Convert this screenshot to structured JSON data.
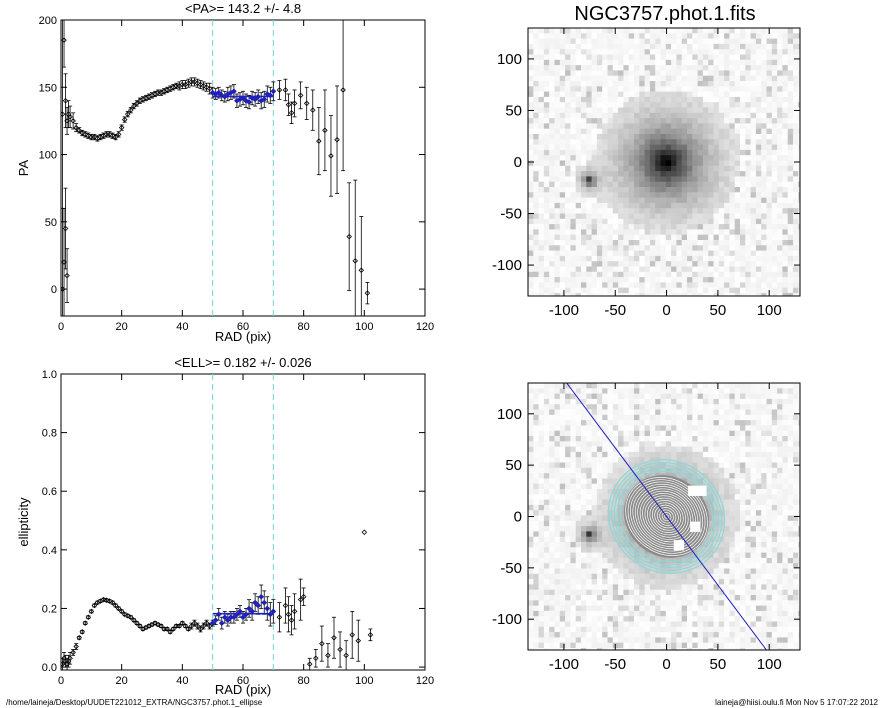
{
  "footer": {
    "path": "/home/laineja/Desktop/UUDET221012_EXTRA/NGC3757.phot.1_ellipse",
    "user_stamp": "laineja@hiisi.oulu.fi  Mon Nov  5 17:07:22 2012"
  },
  "chart_data": [
    {
      "type": "scatter",
      "title": "<PA>= 143.2 +/-   4.8",
      "xlabel": "RAD (pix)",
      "ylabel": "PA",
      "xlim": [
        0,
        120
      ],
      "ylim": [
        -20,
        200
      ],
      "xticks": [
        0,
        20,
        40,
        60,
        80,
        100,
        120
      ],
      "yticks": [
        0,
        50,
        100,
        150,
        200
      ],
      "fit_window": [
        50,
        70
      ],
      "mean_value": 143.2,
      "error": 4.8,
      "series": [
        {
          "marker": "diamond",
          "color": "#000000",
          "x": [
            0.5,
            1,
            1.5,
            2,
            2.5,
            3,
            4,
            5,
            6,
            7,
            8,
            9,
            10,
            11,
            12,
            13,
            14,
            15,
            16,
            17,
            18,
            19,
            20,
            21,
            22,
            23,
            24,
            25,
            26,
            27,
            28,
            29,
            30,
            31,
            32,
            33,
            34,
            35,
            36,
            37,
            38,
            39,
            40,
            41,
            42,
            43,
            44,
            45,
            46,
            47,
            48,
            49,
            50,
            51,
            52,
            53,
            54,
            55,
            56,
            57,
            58,
            59,
            60,
            61,
            62,
            63,
            64,
            65,
            66,
            67,
            68,
            69,
            70,
            72,
            74,
            75,
            76,
            77,
            79,
            81,
            83,
            85,
            87,
            89,
            91,
            93,
            95,
            97,
            99,
            101
          ],
          "y": [
            130,
            185,
            140,
            125,
            130,
            128,
            125,
            120,
            118,
            116,
            115,
            114,
            113,
            113,
            112,
            113,
            114,
            115,
            115,
            114,
            113,
            115,
            120,
            126,
            130,
            133,
            136,
            138,
            140,
            141,
            142,
            143,
            144,
            145,
            146,
            146,
            147,
            148,
            149,
            150,
            151,
            151,
            152,
            152,
            153,
            154,
            154,
            153,
            152,
            151,
            150,
            149,
            146,
            145,
            146,
            144,
            143,
            145,
            146,
            147,
            140,
            141,
            142,
            140,
            139,
            142,
            141,
            143,
            140,
            141,
            145,
            144,
            147,
            148,
            148,
            137,
            131,
            138,
            144,
            138,
            133,
            110,
            118,
            99,
            111,
            148,
            39,
            21,
            14,
            -3
          ],
          "yerr": [
            80,
            20,
            20,
            10,
            10,
            8,
            6,
            3,
            2,
            2,
            2,
            2,
            2,
            2,
            2,
            2,
            2,
            2,
            2,
            2,
            2,
            2,
            2,
            2,
            2,
            2,
            2,
            2,
            2,
            2,
            2,
            2,
            2,
            2,
            2,
            2,
            2,
            2,
            2,
            2,
            2,
            3,
            3,
            3,
            3,
            3,
            3,
            3,
            3,
            3,
            3,
            4,
            4,
            4,
            4,
            4,
            4,
            5,
            5,
            5,
            5,
            5,
            5,
            5,
            5,
            5,
            5,
            5,
            6,
            6,
            6,
            6,
            7,
            7,
            8,
            8,
            8,
            10,
            10,
            12,
            15,
            25,
            30,
            30,
            40,
            60,
            40,
            60,
            40,
            8
          ]
        },
        {
          "marker": "diamond",
          "color": "#000000",
          "x": [
            0.5,
            1,
            1.5,
            2
          ],
          "y": [
            0,
            20,
            45,
            10
          ],
          "yerr": [
            60,
            40,
            30,
            20
          ]
        },
        {
          "marker": "diamond",
          "color": "#2020c0",
          "x": [
            50,
            51,
            52,
            53,
            54,
            55,
            56,
            57,
            58,
            59,
            60,
            61,
            62,
            63,
            64,
            65,
            66,
            67,
            68,
            69,
            70
          ],
          "y": [
            146,
            145,
            146,
            144,
            143,
            145,
            146,
            147,
            140,
            141,
            142,
            140,
            139,
            142,
            141,
            143,
            140,
            141,
            145,
            144,
            147
          ]
        }
      ]
    },
    {
      "type": "scatter",
      "title": "<ELL>= 0.182 +/-  0.026",
      "xlabel": "RAD (pix)",
      "ylabel": "ellipticity",
      "xlim": [
        0,
        120
      ],
      "ylim": [
        -0.01,
        1.0
      ],
      "xticks": [
        0,
        20,
        40,
        60,
        80,
        100,
        120
      ],
      "yticks": [
        0.0,
        0.2,
        0.4,
        0.6,
        0.8,
        1.0
      ],
      "fit_window": [
        50,
        70
      ],
      "mean_value": 0.182,
      "error": 0.026,
      "series": [
        {
          "marker": "diamond",
          "color": "#000000",
          "x": [
            0.5,
            1,
            1.5,
            2,
            2.5,
            3,
            4,
            5,
            6,
            7,
            8,
            9,
            10,
            11,
            12,
            13,
            14,
            15,
            16,
            17,
            18,
            19,
            20,
            21,
            22,
            23,
            24,
            25,
            26,
            27,
            28,
            29,
            30,
            31,
            32,
            33,
            34,
            35,
            36,
            37,
            38,
            39,
            40,
            41,
            42,
            43,
            44,
            45,
            46,
            47,
            48,
            49,
            50,
            51,
            52,
            53,
            54,
            55,
            56,
            57,
            58,
            59,
            60,
            61,
            62,
            63,
            64,
            65,
            66,
            67,
            68,
            69,
            70,
            72,
            74,
            75,
            76,
            77,
            79,
            80,
            82,
            84,
            86,
            88,
            90,
            92,
            94,
            96,
            98,
            100,
            102
          ],
          "y": [
            0.01,
            0.03,
            0.02,
            0.01,
            0.02,
            0.03,
            0.05,
            0.07,
            0.1,
            0.12,
            0.15,
            0.17,
            0.19,
            0.21,
            0.22,
            0.225,
            0.23,
            0.228,
            0.225,
            0.22,
            0.21,
            0.2,
            0.19,
            0.18,
            0.175,
            0.17,
            0.16,
            0.15,
            0.14,
            0.13,
            0.135,
            0.14,
            0.145,
            0.15,
            0.145,
            0.14,
            0.13,
            0.13,
            0.12,
            0.13,
            0.14,
            0.14,
            0.15,
            0.14,
            0.13,
            0.14,
            0.15,
            0.14,
            0.13,
            0.14,
            0.15,
            0.14,
            0.15,
            0.16,
            0.18,
            0.15,
            0.17,
            0.16,
            0.17,
            0.17,
            0.18,
            0.19,
            0.17,
            0.18,
            0.2,
            0.19,
            0.22,
            0.21,
            0.24,
            0.22,
            0.2,
            0.18,
            0.19,
            0.17,
            0.21,
            0.18,
            0.16,
            0.19,
            0.23,
            0.24,
            0.01,
            0.03,
            0.08,
            0.04,
            0.1,
            0.06,
            0.04,
            0.11,
            0.09,
            0.46,
            0.11
          ],
          "yerr": [
            0.02,
            0.02,
            0.02,
            0.02,
            0.02,
            0.02,
            0.01,
            0.01,
            0.005,
            0.005,
            0.005,
            0.005,
            0.005,
            0.005,
            0.005,
            0.005,
            0.005,
            0.005,
            0.005,
            0.005,
            0.005,
            0.005,
            0.005,
            0.005,
            0.005,
            0.005,
            0.005,
            0.005,
            0.005,
            0.005,
            0.005,
            0.005,
            0.005,
            0.005,
            0.005,
            0.005,
            0.005,
            0.005,
            0.005,
            0.005,
            0.005,
            0.005,
            0.005,
            0.005,
            0.005,
            0.01,
            0.01,
            0.01,
            0.01,
            0.01,
            0.01,
            0.01,
            0.01,
            0.015,
            0.02,
            0.02,
            0.02,
            0.02,
            0.02,
            0.02,
            0.02,
            0.02,
            0.02,
            0.02,
            0.03,
            0.03,
            0.03,
            0.03,
            0.04,
            0.04,
            0.04,
            0.04,
            0.04,
            0.05,
            0.06,
            0.06,
            0.05,
            0.06,
            0.07,
            0.03,
            0.02,
            0.03,
            0.06,
            0.04,
            0.07,
            0.06,
            0.05,
            0.08,
            0.07,
            0.0,
            0.02
          ]
        },
        {
          "marker": "diamond",
          "color": "#2020c0",
          "x": [
            50,
            51,
            52,
            53,
            54,
            55,
            56,
            57,
            58,
            59,
            60,
            61,
            62,
            63,
            64,
            65,
            66,
            67,
            68,
            69,
            70
          ],
          "y": [
            0.15,
            0.16,
            0.18,
            0.15,
            0.17,
            0.16,
            0.17,
            0.17,
            0.18,
            0.19,
            0.17,
            0.18,
            0.2,
            0.19,
            0.22,
            0.21,
            0.24,
            0.22,
            0.2,
            0.18,
            0.19
          ]
        }
      ]
    },
    {
      "type": "heatmap",
      "title": "NGC3757.phot.1.fits",
      "xlim": [
        -135,
        130
      ],
      "ylim": [
        -130,
        130
      ],
      "xticks": [
        -100,
        -50,
        0,
        50,
        100
      ],
      "yticks": [
        -100,
        -50,
        0,
        50,
        100
      ],
      "colormap": "inverted grayscale",
      "sources": [
        {
          "x": 0,
          "y": 0,
          "peak": 1.0,
          "sigma": 28
        },
        {
          "x": -75,
          "y": -18,
          "peak": 0.85,
          "sigma": 5
        }
      ]
    },
    {
      "type": "heatmap",
      "xlim": [
        -135,
        130
      ],
      "ylim": [
        -130,
        130
      ],
      "xticks": [
        -100,
        -50,
        0,
        50,
        100
      ],
      "yticks": [
        -100,
        -50,
        0,
        50,
        100
      ],
      "colormap": "inverted grayscale",
      "pa_deg": 143.2,
      "ellipse_color": "#8fd8d8",
      "isophote_color": "#ffffff",
      "line_color": "#2020c0",
      "masked_boxes": [
        {
          "x": 30,
          "y": 25,
          "w": 18,
          "h": 10
        },
        {
          "x": 28,
          "y": -10,
          "w": 10,
          "h": 10
        },
        {
          "x": 12,
          "y": -28,
          "w": 10,
          "h": 10
        }
      ]
    }
  ]
}
